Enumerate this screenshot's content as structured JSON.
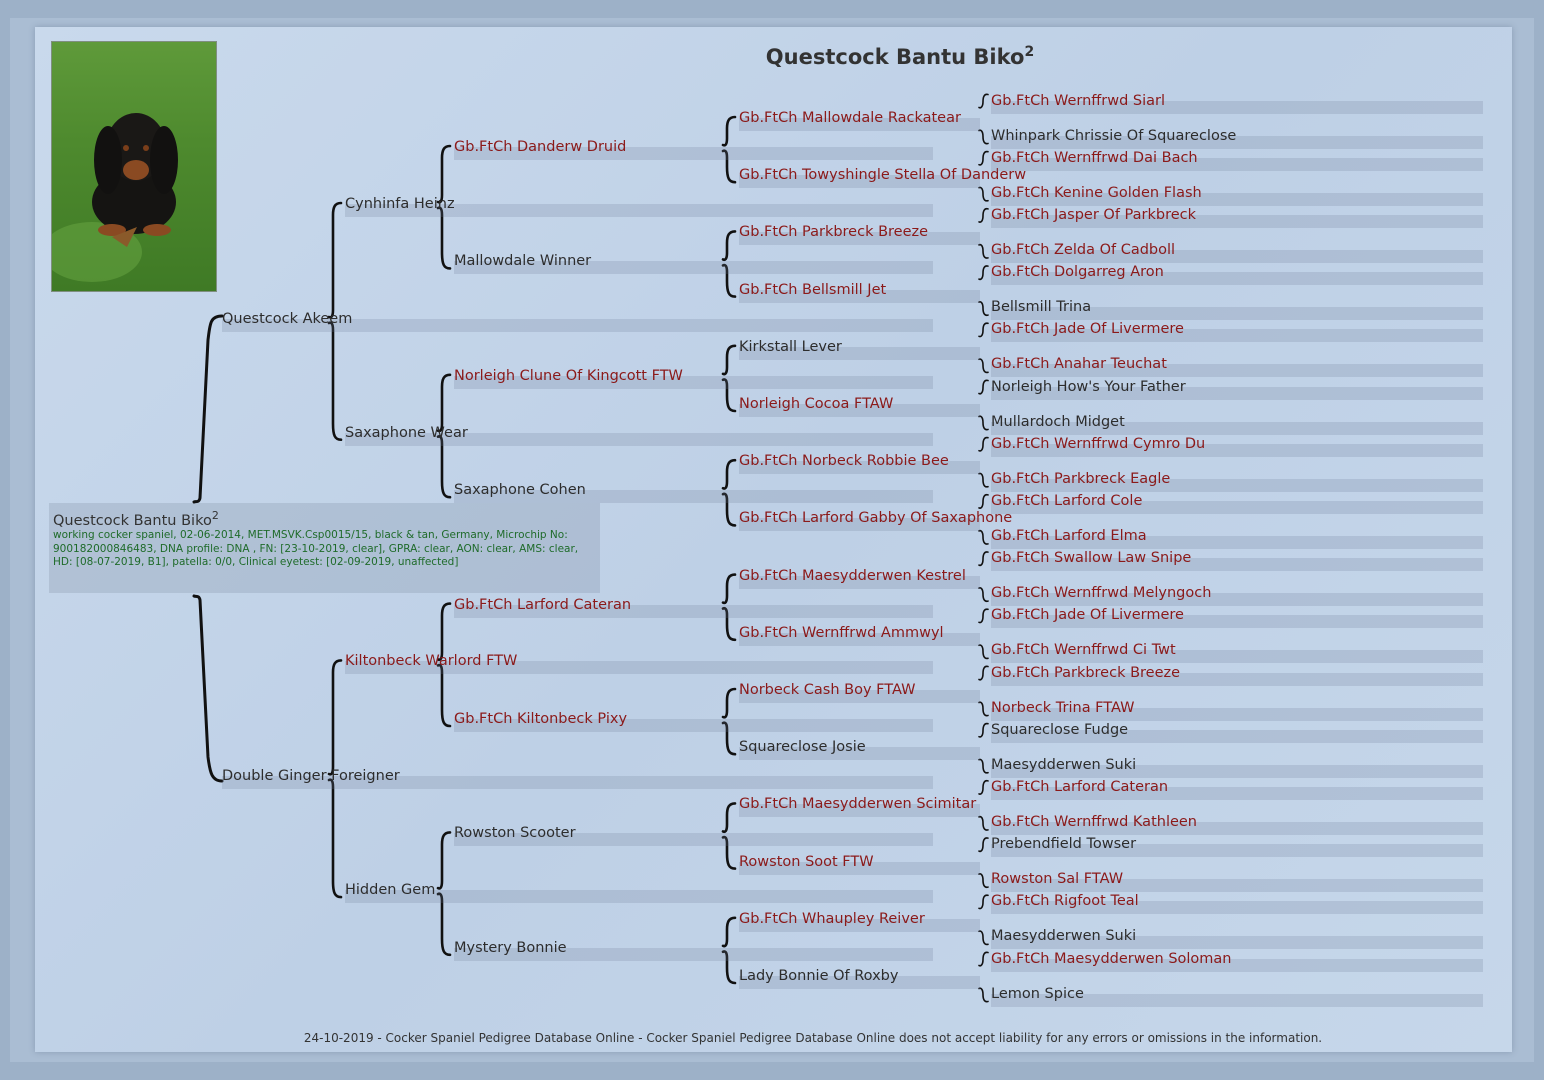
{
  "title": "Questcock Bantu Biko",
  "title_sup": "2",
  "subject": {
    "name": "Questcock Bantu Biko",
    "sup": "2",
    "info": "working cocker spaniel, 02-06-2014, MET.MSVK.Csp0015/15, black & tan, Germany, Microchip No: 900182000846483, DNA profile: DNA , FN: [23-10-2019, clear], GPRA: clear, AON: clear, AMS: clear, HD: [08-07-2019, B1], patella: 0/0, Clinical eyetest: [02-09-2019, unaffected]"
  },
  "photo": {
    "icon": "dog-photo"
  },
  "colors": {
    "champion": "#8b1a1a",
    "regular": "#2d2d2d",
    "info": "#1f6b2a"
  },
  "generations": [
    [
      {
        "name": "Questcock Akeem",
        "champion": false
      },
      {
        "name": "Double Ginger Foreigner",
        "champion": false
      }
    ],
    [
      {
        "name": "Cynhinfa Heinz",
        "champion": false
      },
      {
        "name": "Saxaphone Wear",
        "champion": false
      },
      {
        "name": "Kiltonbeck Warlord FTW",
        "champion": true
      },
      {
        "name": "Hidden Gem",
        "champion": false
      }
    ],
    [
      {
        "name": "Gb.FtCh Danderw Druid",
        "champion": true
      },
      {
        "name": "Mallowdale Winner",
        "champion": false
      },
      {
        "name": "Norleigh Clune Of Kingcott FTW",
        "champion": true
      },
      {
        "name": "Saxaphone Cohen",
        "champion": false
      },
      {
        "name": "Gb.FtCh Larford Cateran",
        "champion": true
      },
      {
        "name": "Gb.FtCh Kiltonbeck Pixy",
        "champion": true
      },
      {
        "name": "Rowston Scooter",
        "champion": false
      },
      {
        "name": "Mystery Bonnie",
        "champion": false
      }
    ],
    [
      {
        "name": "Gb.FtCh Mallowdale Rackatear",
        "champion": true
      },
      {
        "name": "Gb.FtCh Towyshingle Stella Of Danderw",
        "champion": true
      },
      {
        "name": "Gb.FtCh Parkbreck Breeze",
        "champion": true
      },
      {
        "name": "Gb.FtCh Bellsmill Jet",
        "champion": true
      },
      {
        "name": "Kirkstall Lever",
        "champion": false
      },
      {
        "name": "Norleigh Cocoa FTAW",
        "champion": true
      },
      {
        "name": "Gb.FtCh Norbeck Robbie Bee",
        "champion": true
      },
      {
        "name": "Gb.FtCh Larford Gabby Of Saxaphone",
        "champion": true
      },
      {
        "name": "Gb.FtCh Maesydderwen Kestrel",
        "champion": true
      },
      {
        "name": "Gb.FtCh Wernffrwd Ammwyl",
        "champion": true
      },
      {
        "name": "Norbeck Cash Boy FTAW",
        "champion": true
      },
      {
        "name": "Squareclose Josie",
        "champion": false
      },
      {
        "name": "Gb.FtCh Maesydderwen Scimitar",
        "champion": true
      },
      {
        "name": "Rowston Soot FTW",
        "champion": true
      },
      {
        "name": "Gb.FtCh Whaupley Reiver",
        "champion": true
      },
      {
        "name": "Lady Bonnie Of Roxby",
        "champion": false
      }
    ],
    [
      {
        "name": "Gb.FtCh Wernffrwd Siarl",
        "champion": true
      },
      {
        "name": "Whinpark Chrissie Of Squareclose",
        "champion": false
      },
      {
        "name": "Gb.FtCh Wernffrwd Dai Bach",
        "champion": true
      },
      {
        "name": "Gb.FtCh Kenine Golden Flash",
        "champion": true
      },
      {
        "name": "Gb.FtCh Jasper Of Parkbreck",
        "champion": true
      },
      {
        "name": "Gb.FtCh Zelda Of Cadboll",
        "champion": true
      },
      {
        "name": "Gb.FtCh Dolgarreg Aron",
        "champion": true
      },
      {
        "name": "Bellsmill Trina",
        "champion": false
      },
      {
        "name": "Gb.FtCh Jade Of Livermere",
        "champion": true
      },
      {
        "name": "Gb.FtCh Anahar Teuchat",
        "champion": true
      },
      {
        "name": "Norleigh How's Your Father",
        "champion": false
      },
      {
        "name": "Mullardoch Midget",
        "champion": false
      },
      {
        "name": "Gb.FtCh Wernffrwd Cymro Du",
        "champion": true
      },
      {
        "name": "Gb.FtCh Parkbreck Eagle",
        "champion": true
      },
      {
        "name": "Gb.FtCh Larford Cole",
        "champion": true
      },
      {
        "name": "Gb.FtCh Larford Elma",
        "champion": true
      },
      {
        "name": "Gb.FtCh Swallow Law Snipe",
        "champion": true
      },
      {
        "name": "Gb.FtCh Wernffrwd Melyngoch",
        "champion": true
      },
      {
        "name": "Gb.FtCh Jade Of Livermere",
        "champion": true
      },
      {
        "name": "Gb.FtCh Wernffrwd Ci Twt",
        "champion": true
      },
      {
        "name": "Gb.FtCh Parkbreck Breeze",
        "champion": true
      },
      {
        "name": "Norbeck Trina FTAW",
        "champion": true
      },
      {
        "name": "Squareclose Fudge",
        "champion": false
      },
      {
        "name": "Maesydderwen Suki",
        "champion": false
      },
      {
        "name": "Gb.FtCh Larford Cateran",
        "champion": true
      },
      {
        "name": "Gb.FtCh Wernffrwd Kathleen",
        "champion": true
      },
      {
        "name": "Prebendfield Towser",
        "champion": false
      },
      {
        "name": "Rowston Sal FTAW",
        "champion": true
      },
      {
        "name": "Gb.FtCh Rigfoot Teal",
        "champion": true
      },
      {
        "name": "Maesydderwen Suki",
        "champion": false
      },
      {
        "name": "Gb.FtCh Maesydderwen Soloman",
        "champion": true
      },
      {
        "name": "Lemon Spice",
        "champion": false
      }
    ]
  ],
  "footer": "24-10-2019 - Cocker Spaniel Pedigree Database Online - Cocker Spaniel Pedigree Database Online does not accept liability for any errors or omissions in the information."
}
